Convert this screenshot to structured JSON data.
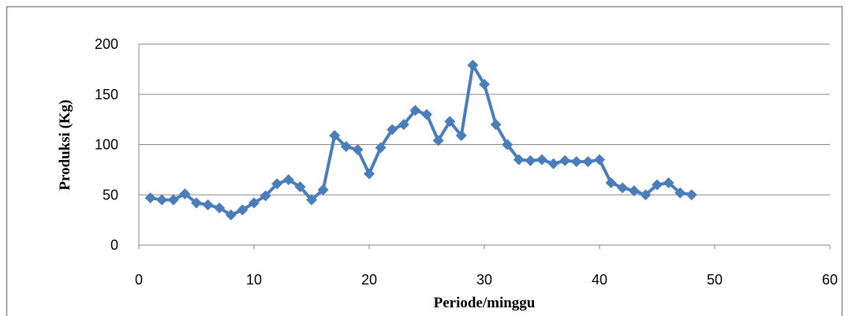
{
  "chart_data": {
    "type": "line",
    "x_label": "Periode/minggu",
    "y_label": "Produksi (Kg)",
    "x": [
      1,
      2,
      3,
      4,
      5,
      6,
      7,
      8,
      9,
      10,
      11,
      12,
      13,
      14,
      15,
      16,
      17,
      18,
      19,
      20,
      21,
      22,
      23,
      24,
      25,
      26,
      27,
      28,
      29,
      30,
      31,
      32,
      33,
      34,
      35,
      36,
      37,
      38,
      39,
      40,
      41,
      42,
      43,
      44,
      45,
      46,
      47,
      48
    ],
    "series": [
      {
        "color": "#4a7ebb",
        "marker": "diamond",
        "values": [
          47,
          45,
          45,
          51,
          42,
          40,
          37,
          30,
          35,
          42,
          49,
          61,
          65,
          58,
          45,
          55,
          109,
          98,
          95,
          71,
          97,
          115,
          120,
          134,
          130,
          104,
          123,
          109,
          179,
          160,
          120,
          100,
          85,
          84,
          85,
          81,
          84,
          83,
          83,
          85,
          62,
          57,
          54,
          50,
          60,
          62,
          52,
          50
        ]
      }
    ],
    "xlim": [
      0,
      60
    ],
    "xticks": [
      0,
      10,
      20,
      30,
      40,
      50,
      60
    ],
    "ylim": [
      0,
      200
    ],
    "yticks": [
      0,
      50,
      100,
      150,
      200
    ],
    "grid": true
  }
}
